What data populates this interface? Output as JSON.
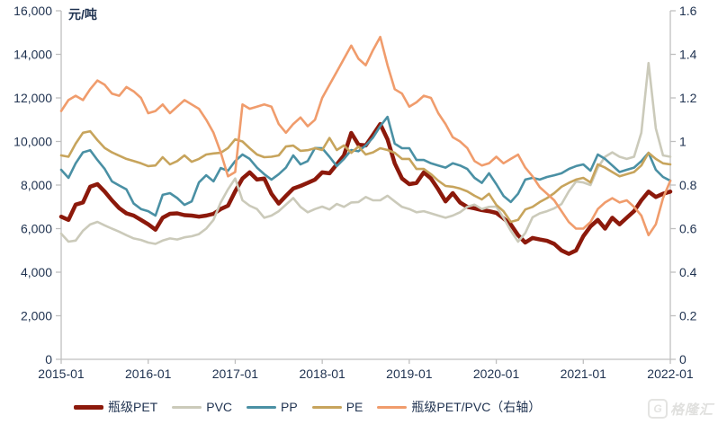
{
  "chart_data": {
    "type": "line",
    "unit_label": "元/吨",
    "x_start": "2015-01",
    "x_end": "2022-01",
    "frequency": "monthly",
    "x_labels": [
      "2015-01",
      "2016-01",
      "2017-01",
      "2018-01",
      "2019-01",
      "2020-01",
      "2021-01",
      "2022-01"
    ],
    "left_axis": {
      "min": 0,
      "max": 16000,
      "step": 2000,
      "ticks": [
        "0",
        "2,000",
        "4,000",
        "6,000",
        "8,000",
        "10,000",
        "12,000",
        "14,000",
        "16,000"
      ]
    },
    "right_axis": {
      "min": 0,
      "max": 1.6,
      "step": 0.2,
      "ticks": [
        "0",
        "0.2",
        "0.4",
        "0.6",
        "0.8",
        "1",
        "1.2",
        "1.4",
        "1.6"
      ]
    },
    "grid": "off",
    "legend_position": "bottom",
    "colors": {
      "text": "#1f3250",
      "axis": "#bfbfbf",
      "background": "#ffffff"
    },
    "watermark": "格隆汇",
    "watermark_icon": "G",
    "series": [
      {
        "id": "pet",
        "name": "瓶级PET",
        "axis": "left",
        "color": "#8c190b",
        "width": 4.5,
        "values": [
          6550,
          6400,
          7100,
          7200,
          7920,
          8040,
          7700,
          7300,
          6940,
          6700,
          6600,
          6400,
          6200,
          5950,
          6500,
          6680,
          6700,
          6620,
          6600,
          6550,
          6600,
          6680,
          6900,
          7050,
          7710,
          8300,
          8580,
          8250,
          8300,
          7600,
          7150,
          7500,
          7840,
          7960,
          8100,
          8250,
          8580,
          8540,
          8950,
          9360,
          10390,
          9850,
          9820,
          10300,
          10800,
          10100,
          9000,
          8300,
          8040,
          8100,
          8580,
          8300,
          7800,
          7250,
          7630,
          7200,
          7000,
          6930,
          6850,
          6800,
          6720,
          6470,
          6190,
          5700,
          5360,
          5570,
          5500,
          5440,
          5300,
          5000,
          4840,
          5000,
          5650,
          6100,
          6400,
          6000,
          6500,
          6200,
          6500,
          6800,
          7300,
          7700,
          7450,
          7600,
          7700
        ]
      },
      {
        "id": "pvc",
        "name": "PVC",
        "axis": "left",
        "color": "#cbcaba",
        "width": 2.6,
        "values": [
          5770,
          5400,
          5450,
          5900,
          6190,
          6310,
          6150,
          6000,
          5860,
          5700,
          5550,
          5480,
          5360,
          5300,
          5450,
          5550,
          5500,
          5600,
          5650,
          5750,
          6000,
          6400,
          7200,
          7800,
          8300,
          7300,
          7050,
          6900,
          6500,
          6600,
          6800,
          7100,
          7400,
          7000,
          6750,
          6900,
          7010,
          6880,
          7130,
          7000,
          7200,
          7220,
          7450,
          7300,
          7300,
          7510,
          7250,
          7000,
          6900,
          6750,
          6800,
          6700,
          6600,
          6500,
          6600,
          6750,
          7000,
          7100,
          6900,
          7000,
          7010,
          6500,
          5900,
          5400,
          5800,
          6520,
          6700,
          6800,
          6930,
          7130,
          7710,
          8160,
          8120,
          8000,
          8800,
          9300,
          9500,
          9300,
          9200,
          9300,
          10400,
          13600,
          10600,
          9360,
          9300
        ]
      },
      {
        "id": "pp",
        "name": "PP",
        "axis": "left",
        "color": "#4a90a4",
        "width": 2.6,
        "values": [
          8700,
          8330,
          9000,
          9500,
          9600,
          9150,
          8740,
          8170,
          7980,
          7800,
          7150,
          6900,
          6800,
          6600,
          7550,
          7630,
          7400,
          7090,
          7250,
          8120,
          8450,
          8170,
          8780,
          8660,
          9100,
          9400,
          9200,
          8800,
          8500,
          8250,
          8500,
          8800,
          9360,
          8950,
          9100,
          9700,
          9690,
          9300,
          8870,
          9200,
          9610,
          9550,
          9820,
          10180,
          10700,
          11130,
          9900,
          9690,
          9690,
          9150,
          9150,
          9000,
          8900,
          8800,
          9000,
          8900,
          8740,
          8330,
          8100,
          8540,
          8040,
          7500,
          7220,
          7600,
          8250,
          8330,
          8250,
          8370,
          8450,
          8540,
          8740,
          8870,
          8950,
          8660,
          9400,
          9200,
          8900,
          8600,
          8700,
          8800,
          9100,
          9480,
          8700,
          8370,
          8200
        ]
      },
      {
        "id": "pe",
        "name": "PE",
        "axis": "left",
        "color": "#c7a45c",
        "width": 2.6,
        "values": [
          9360,
          9300,
          9900,
          10400,
          10470,
          10060,
          9700,
          9500,
          9350,
          9200,
          9100,
          9000,
          8870,
          8900,
          9280,
          8950,
          9100,
          9360,
          9070,
          9200,
          9400,
          9450,
          9480,
          9700,
          10100,
          10000,
          9690,
          9400,
          9280,
          9300,
          9360,
          9770,
          9810,
          9570,
          9600,
          9690,
          9610,
          10160,
          9610,
          9820,
          9480,
          9770,
          9400,
          9500,
          9690,
          9610,
          9480,
          9200,
          9200,
          8740,
          8740,
          8500,
          8200,
          7960,
          7920,
          7840,
          7710,
          7510,
          7340,
          7600,
          7090,
          6800,
          6310,
          6400,
          6880,
          7000,
          7220,
          7400,
          7630,
          7920,
          8100,
          8250,
          8330,
          8120,
          8950,
          8800,
          8600,
          8400,
          8500,
          8600,
          8900,
          9480,
          9200,
          9000,
          8950
        ]
      },
      {
        "id": "pet-pvc-ratio",
        "name": "瓶级PET/PVC（右轴）",
        "axis": "right",
        "color": "#f09c6c",
        "width": 2.6,
        "values": [
          1.14,
          1.19,
          1.21,
          1.19,
          1.24,
          1.28,
          1.26,
          1.22,
          1.21,
          1.25,
          1.23,
          1.2,
          1.13,
          1.14,
          1.17,
          1.13,
          1.16,
          1.19,
          1.17,
          1.15,
          1.1,
          1.04,
          0.95,
          0.84,
          0.86,
          1.17,
          1.15,
          1.16,
          1.17,
          1.16,
          1.08,
          1.04,
          1.08,
          1.11,
          1.07,
          1.1,
          1.2,
          1.26,
          1.32,
          1.38,
          1.44,
          1.38,
          1.35,
          1.42,
          1.48,
          1.35,
          1.24,
          1.22,
          1.16,
          1.18,
          1.21,
          1.2,
          1.13,
          1.08,
          1.02,
          1.0,
          0.97,
          0.91,
          0.89,
          0.9,
          0.93,
          0.9,
          0.92,
          0.94,
          0.88,
          0.84,
          0.79,
          0.76,
          0.73,
          0.68,
          0.63,
          0.6,
          0.6,
          0.63,
          0.69,
          0.72,
          0.74,
          0.72,
          0.73,
          0.7,
          0.66,
          0.57,
          0.62,
          0.74,
          0.82
        ]
      }
    ]
  }
}
